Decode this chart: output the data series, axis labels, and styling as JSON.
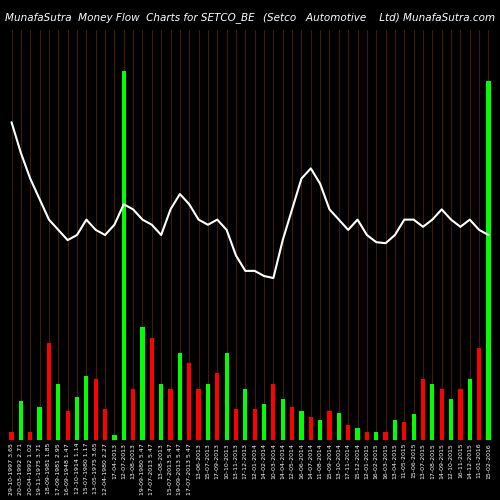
{
  "title_left": "MunafaSutra  Money Flow  Charts for SETCO_BE",
  "title_right": "(Setco   Automotive    Ltd) MunafaSutra.com",
  "background_color": "#000000",
  "bar_border_color": "#7B3300",
  "line_color": "#ffffff",
  "categories": [
    "29-10-1997 3.65",
    "20-03-1992 2.71",
    "20-04-1992 1.02",
    "19-11-1975 3.71",
    "18-09-1981 1.85",
    "17-09-1981 2.95",
    "16-09-1948 1.47",
    "12-10-1914 1.14",
    "15-07-1980 1.17",
    "13-05-1975 3.65",
    "12-04-1980 2.27",
    "17-04-2013",
    "12-07-2013",
    "13-08-2013",
    "19-09-1980 5.47",
    "17-07-2013 5.47",
    "13-08-2013",
    "15-07-2013 5.47",
    "19-09-2013 5.47",
    "17-07-2013 5.47",
    "13-06-2013",
    "15-07-2013",
    "17-09-2013",
    "10-10-2013",
    "13-11-2013",
    "17-12-2013",
    "12-01-2014",
    "14-02-2014",
    "10-03-2014",
    "14-04-2014",
    "12-05-2014",
    "16-06-2014",
    "14-07-2014",
    "11-08-2014",
    "15-09-2014",
    "13-10-2014",
    "17-11-2014",
    "15-12-2014",
    "12-01-2015",
    "16-02-2015",
    "16-03-2015",
    "13-04-2015",
    "11-05-2015",
    "15-06-2015",
    "13-07-2015",
    "17-08-2015",
    "14-09-2015",
    "12-10-2015",
    "16-11-2015",
    "14-12-2015",
    "11-01-2016",
    "15-02-2016"
  ],
  "bar_values": [
    8,
    38,
    8,
    32,
    95,
    55,
    28,
    42,
    62,
    60,
    30,
    5,
    360,
    50,
    110,
    100,
    55,
    50,
    85,
    75,
    50,
    55,
    65,
    85,
    30,
    50,
    30,
    35,
    55,
    40,
    32,
    28,
    22,
    20,
    28,
    26,
    15,
    12,
    8,
    8,
    8,
    20,
    18,
    25,
    60,
    55,
    50,
    40,
    50,
    60,
    90,
    350
  ],
  "bar_colors": [
    "#ff0000",
    "#00ff00",
    "#ff0000",
    "#00ff00",
    "#ff0000",
    "#00ff00",
    "#ff0000",
    "#00ff00",
    "#00ff00",
    "#ff0000",
    "#ff0000",
    "#00ff00",
    "#00ff00",
    "#ff0000",
    "#00ff00",
    "#ff0000",
    "#00ff00",
    "#ff0000",
    "#00ff00",
    "#ff0000",
    "#ff0000",
    "#00ff00",
    "#ff0000",
    "#00ff00",
    "#ff0000",
    "#00ff00",
    "#ff0000",
    "#00ff00",
    "#ff0000",
    "#00ff00",
    "#ff0000",
    "#00ff00",
    "#ff0000",
    "#00ff00",
    "#ff0000",
    "#00ff00",
    "#ff0000",
    "#00ff00",
    "#ff0000",
    "#00ff00",
    "#ff0000",
    "#00ff00",
    "#ff0000",
    "#00ff00",
    "#ff0000",
    "#00ff00",
    "#ff0000",
    "#00ff00",
    "#ff0000",
    "#00ff00",
    "#ff0000",
    "#00ff00"
  ],
  "line_values": [
    310,
    280,
    255,
    235,
    215,
    205,
    195,
    200,
    215,
    205,
    200,
    210,
    230,
    225,
    215,
    210,
    200,
    225,
    240,
    230,
    215,
    210,
    215,
    205,
    180,
    165,
    165,
    160,
    158,
    195,
    225,
    255,
    265,
    250,
    225,
    215,
    205,
    215,
    200,
    193,
    192,
    200,
    215,
    215,
    208,
    215,
    225,
    215,
    208,
    215,
    205,
    200
  ],
  "ylim_max": 400,
  "title_fontsize": 7.5,
  "label_fontsize": 4.5
}
